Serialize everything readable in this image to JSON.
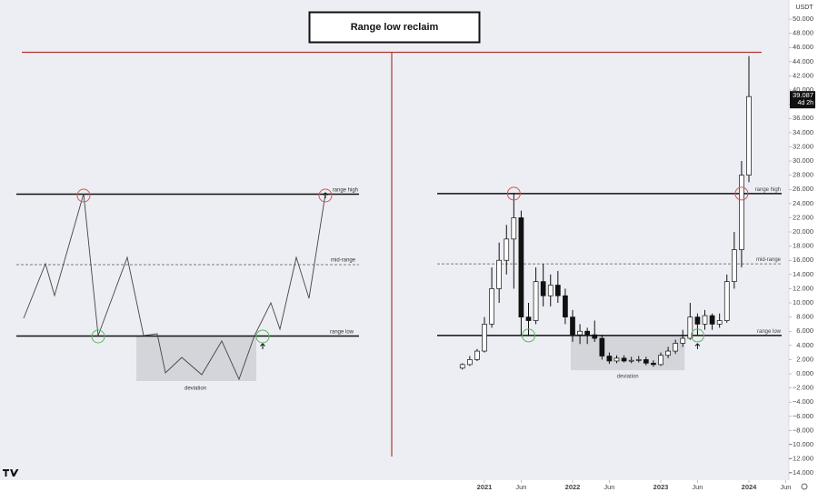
{
  "title": "Range low reclaim",
  "diagram": {
    "labels": {
      "range_high": "range high",
      "mid_range": "mid-range",
      "range_low": "range low",
      "deviation": "deviation"
    }
  },
  "chart_data": {
    "type": "candlestick",
    "currency": "USDT",
    "x": [
      "2020-10",
      "2020-11",
      "2020-12",
      "2021-01",
      "2021-02",
      "2021-03",
      "2021-04",
      "2021-05",
      "2021-06",
      "2021-07",
      "2021-08",
      "2021-09",
      "2021-10",
      "2021-11",
      "2021-12",
      "2022-01",
      "2022-02",
      "2022-03",
      "2022-04",
      "2022-05",
      "2022-06",
      "2022-07",
      "2022-08",
      "2022-09",
      "2022-10",
      "2022-11",
      "2022-12",
      "2023-01",
      "2023-02",
      "2023-03",
      "2023-04",
      "2023-05",
      "2023-06",
      "2023-07",
      "2023-08",
      "2023-09",
      "2023-10",
      "2023-11",
      "2023-12",
      "2024-01"
    ],
    "open": [
      800,
      1300,
      2000,
      3200,
      7000,
      12000,
      16000,
      19000,
      22000,
      8000,
      7500,
      13000,
      11000,
      12500,
      11000,
      8000,
      5500,
      6000,
      5500,
      5000,
      2500,
      1800,
      2200,
      1800,
      1900,
      2000,
      1500,
      1300,
      2600,
      3200,
      4300,
      5000,
      8000,
      7000,
      8200,
      7000,
      7500,
      13000,
      17500,
      28000
    ],
    "high": [
      1500,
      2500,
      3500,
      8000,
      15000,
      18500,
      21000,
      25500,
      23000,
      10000,
      15000,
      15500,
      14000,
      14500,
      12000,
      9000,
      7000,
      6500,
      7500,
      5500,
      3000,
      2600,
      2600,
      2400,
      2500,
      2400,
      1900,
      3000,
      3800,
      4800,
      6200,
      10000,
      8500,
      9000,
      8500,
      8500,
      14000,
      20000,
      30000,
      44800
    ],
    "low": [
      600,
      1100,
      1800,
      3000,
      6500,
      10000,
      14000,
      12000,
      5400,
      5400,
      7000,
      9500,
      9500,
      10000,
      7000,
      4500,
      4200,
      4200,
      4500,
      2000,
      1400,
      1500,
      1600,
      1500,
      1600,
      1200,
      1000,
      1100,
      2200,
      2800,
      3800,
      4800,
      5400,
      6200,
      6200,
      6500,
      7200,
      12000,
      15000,
      27000
    ],
    "close": [
      1300,
      2000,
      3200,
      7000,
      12000,
      16000,
      19000,
      22000,
      8000,
      7500,
      13000,
      11000,
      12500,
      11000,
      8000,
      5500,
      6000,
      5500,
      5000,
      2500,
      1800,
      2200,
      1800,
      1900,
      2000,
      1500,
      1300,
      2600,
      3200,
      4300,
      5000,
      8000,
      7000,
      8200,
      7000,
      7500,
      13000,
      17500,
      28000,
      39087
    ],
    "up_color": "#ffffff",
    "down_color": "#111111",
    "ylim": [
      -15000,
      52700
    ],
    "yticks": [
      {
        "value": 50000,
        "label": "50.000"
      },
      {
        "value": 48000,
        "label": "48.000"
      },
      {
        "value": 46000,
        "label": "46.000"
      },
      {
        "value": 44000,
        "label": "44.000"
      },
      {
        "value": 42000,
        "label": "42.000"
      },
      {
        "value": 40000,
        "label": "40.000"
      },
      {
        "value": 38000,
        "label": "38.000"
      },
      {
        "value": 36000,
        "label": "36.000"
      },
      {
        "value": 34000,
        "label": "34.000"
      },
      {
        "value": 32000,
        "label": "32.000"
      },
      {
        "value": 30000,
        "label": "30.000"
      },
      {
        "value": 28000,
        "label": "28.000"
      },
      {
        "value": 26000,
        "label": "26.000"
      },
      {
        "value": 24000,
        "label": "24.000"
      },
      {
        "value": 22000,
        "label": "22.000"
      },
      {
        "value": 20000,
        "label": "20.000"
      },
      {
        "value": 18000,
        "label": "18.000"
      },
      {
        "value": 16000,
        "label": "16.000"
      },
      {
        "value": 14000,
        "label": "14.000"
      },
      {
        "value": 12000,
        "label": "12.000"
      },
      {
        "value": 10000,
        "label": "10.000"
      },
      {
        "value": 8000,
        "label": "8.000"
      },
      {
        "value": 6000,
        "label": "6.000"
      },
      {
        "value": 4000,
        "label": "4.000"
      },
      {
        "value": 2000,
        "label": "2.000"
      },
      {
        "value": 0,
        "label": "0.000"
      },
      {
        "value": -2000,
        "label": "−2.000"
      },
      {
        "value": -4000,
        "label": "−4.000"
      },
      {
        "value": -6000,
        "label": "−6.000"
      },
      {
        "value": -8000,
        "label": "−8.000"
      },
      {
        "value": -10000,
        "label": "−10.000"
      },
      {
        "value": -12000,
        "label": "−12.000"
      },
      {
        "value": -14000,
        "label": "−14.000"
      }
    ],
    "xticks": [
      {
        "value": "2021-01",
        "label": "2021"
      },
      {
        "value": "2021-06",
        "label": "Jun"
      },
      {
        "value": "2022-01",
        "label": "2022"
      },
      {
        "value": "2022-06",
        "label": "Jun"
      },
      {
        "value": "2023-01",
        "label": "2023"
      },
      {
        "value": "2023-06",
        "label": "Jun"
      },
      {
        "value": "2024-01",
        "label": "2024"
      },
      {
        "value": "2024-06",
        "label": "Jun"
      }
    ],
    "levels": [
      {
        "label": "range high",
        "value": 25400,
        "style": "solid"
      },
      {
        "label": "mid-range",
        "value": 15500,
        "style": "dashed"
      },
      {
        "label": "range low",
        "value": 5400,
        "style": "solid"
      }
    ],
    "deviation_zone": {
      "label": "deviation",
      "x": [
        "2022-01",
        "2023-04"
      ],
      "y": [
        500,
        5400
      ]
    },
    "markers": [
      {
        "x": "2021-05",
        "y": 25400,
        "color": "#d9534f"
      },
      {
        "x": "2021-07",
        "y": 5400,
        "color": "#5cb85c"
      },
      {
        "x": "2023-06",
        "y": 5400,
        "color": "#5cb85c"
      },
      {
        "x": "2023-12",
        "y": 25400,
        "color": "#d9534f"
      }
    ],
    "last_price": {
      "value": 39087,
      "label": "39.087"
    },
    "countdown": "4d 2h"
  }
}
